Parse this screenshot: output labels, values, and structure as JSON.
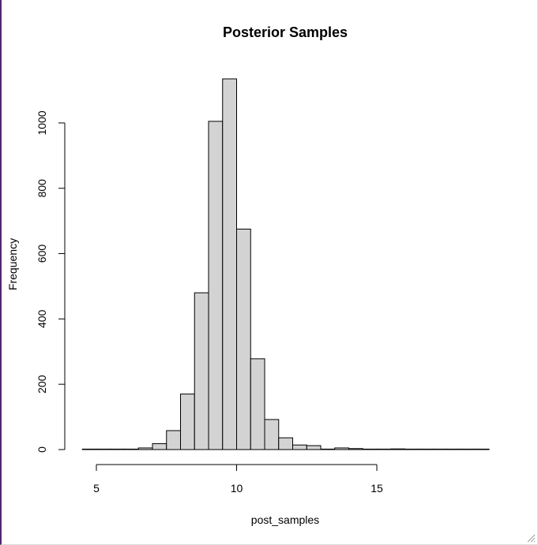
{
  "chart_data": {
    "type": "bar",
    "title": "Posterior Samples",
    "xlabel": "post_samples",
    "ylabel": "Frequency",
    "bin_width": 0.5,
    "bins": [
      {
        "x0": 4.5,
        "x1": 5.0,
        "count": 1
      },
      {
        "x0": 5.0,
        "x1": 5.5,
        "count": 0
      },
      {
        "x0": 5.5,
        "x1": 6.0,
        "count": 0
      },
      {
        "x0": 6.0,
        "x1": 6.5,
        "count": 1
      },
      {
        "x0": 6.5,
        "x1": 7.0,
        "count": 5
      },
      {
        "x0": 7.0,
        "x1": 7.5,
        "count": 18
      },
      {
        "x0": 7.5,
        "x1": 8.0,
        "count": 58
      },
      {
        "x0": 8.0,
        "x1": 8.5,
        "count": 170
      },
      {
        "x0": 8.5,
        "x1": 9.0,
        "count": 480
      },
      {
        "x0": 9.0,
        "x1": 9.5,
        "count": 1005
      },
      {
        "x0": 9.5,
        "x1": 10.0,
        "count": 1135
      },
      {
        "x0": 10.0,
        "x1": 10.5,
        "count": 675
      },
      {
        "x0": 10.5,
        "x1": 11.0,
        "count": 278
      },
      {
        "x0": 11.0,
        "x1": 11.5,
        "count": 92
      },
      {
        "x0": 11.5,
        "x1": 12.0,
        "count": 36
      },
      {
        "x0": 12.0,
        "x1": 12.5,
        "count": 14
      },
      {
        "x0": 12.5,
        "x1": 13.0,
        "count": 12
      },
      {
        "x0": 13.0,
        "x1": 13.5,
        "count": 1
      },
      {
        "x0": 13.5,
        "x1": 14.0,
        "count": 5
      },
      {
        "x0": 14.0,
        "x1": 14.5,
        "count": 3
      },
      {
        "x0": 14.5,
        "x1": 15.0,
        "count": 0
      },
      {
        "x0": 15.0,
        "x1": 15.5,
        "count": 1
      },
      {
        "x0": 15.5,
        "x1": 16.0,
        "count": 2
      },
      {
        "x0": 16.0,
        "x1": 16.5,
        "count": 0
      },
      {
        "x0": 16.5,
        "x1": 17.0,
        "count": 0
      },
      {
        "x0": 17.0,
        "x1": 17.5,
        "count": 0
      },
      {
        "x0": 17.5,
        "x1": 18.0,
        "count": 0
      },
      {
        "x0": 18.0,
        "x1": 18.5,
        "count": 1
      },
      {
        "x0": 18.5,
        "x1": 19.0,
        "count": 1
      }
    ],
    "xlim": [
      4.5,
      19.0
    ],
    "ylim": [
      0,
      1135
    ],
    "x_ticks": [
      5,
      10,
      15
    ],
    "y_ticks": [
      0,
      200,
      400,
      600,
      800,
      1000
    ],
    "grid": false,
    "legend": "none",
    "colors": {
      "bar_fill": "#d3d3d3",
      "bar_stroke": "#000000"
    }
  }
}
